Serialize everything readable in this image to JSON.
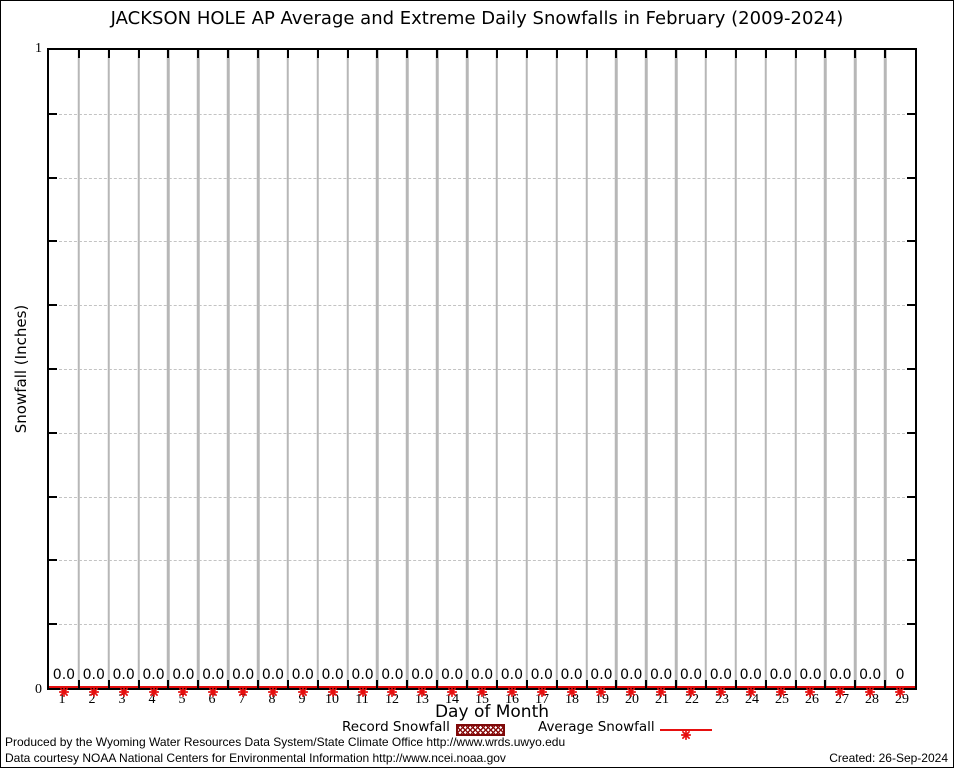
{
  "title": "JACKSON HOLE AP Average and Extreme Daily Snowfalls in February (2009-2024)",
  "chart_data": {
    "type": "bar",
    "title": "JACKSON HOLE AP Average and Extreme Daily Snowfalls in February (2009-2024)",
    "xlabel": "Day of Month",
    "ylabel": "Snowfall (Inches)",
    "x": [
      1,
      2,
      3,
      4,
      5,
      6,
      7,
      8,
      9,
      10,
      11,
      12,
      13,
      14,
      15,
      16,
      17,
      18,
      19,
      20,
      21,
      22,
      23,
      24,
      25,
      26,
      27,
      28,
      29
    ],
    "series": [
      {
        "name": "Record Snowfall",
        "style": "hatched-bar",
        "color": "#8b0f0f",
        "values": [
          0,
          0,
          0,
          0,
          0,
          0,
          0,
          0,
          0,
          0,
          0,
          0,
          0,
          0,
          0,
          0,
          0,
          0,
          0,
          0,
          0,
          0,
          0,
          0,
          0,
          0,
          0,
          0,
          0
        ]
      },
      {
        "name": "Average Snowfall",
        "style": "line-with-star-markers",
        "color": "#e60f0f",
        "values": [
          0,
          0,
          0,
          0,
          0,
          0,
          0,
          0,
          0,
          0,
          0,
          0,
          0,
          0,
          0,
          0,
          0,
          0,
          0,
          0,
          0,
          0,
          0,
          0,
          0,
          0,
          0,
          0,
          0
        ]
      }
    ],
    "value_labels": [
      "0.0",
      "0.0",
      "0.0",
      "0.0",
      "0.0",
      "0.0",
      "0.0",
      "0.0",
      "0.0",
      "0.0",
      "0.0",
      "0.0",
      "0.0",
      "0.0",
      "0.0",
      "0.0",
      "0.0",
      "0.0",
      "0.0",
      "0.0",
      "0.0",
      "0.0",
      "0.0",
      "0.0",
      "0.0",
      "0.0",
      "0.0",
      "0.0",
      "0"
    ],
    "ylim": [
      0,
      1
    ],
    "y_divisions": 10,
    "ytick_labels": {
      "top": "1",
      "bottom": "0"
    },
    "grid": true,
    "legend_position": "bottom-center"
  },
  "legend": {
    "record_label": "Record Snowfall",
    "average_label": "Average Snowfall"
  },
  "footer": {
    "line1": "Produced by the Wyoming Water Resources Data System/State Climate Office http://www.wrds.uwyo.edu",
    "line2": "Data courtesy NOAA National Centers for Environmental Information http://www.ncei.noaa.gov",
    "created": "Created: 26-Sep-2024"
  },
  "colors": {
    "average_line": "#e60f0f",
    "record_hatch": "#8b0f0f",
    "grid_vertical": "#b7b7b7",
    "grid_dashed": "#c3c3c3"
  }
}
